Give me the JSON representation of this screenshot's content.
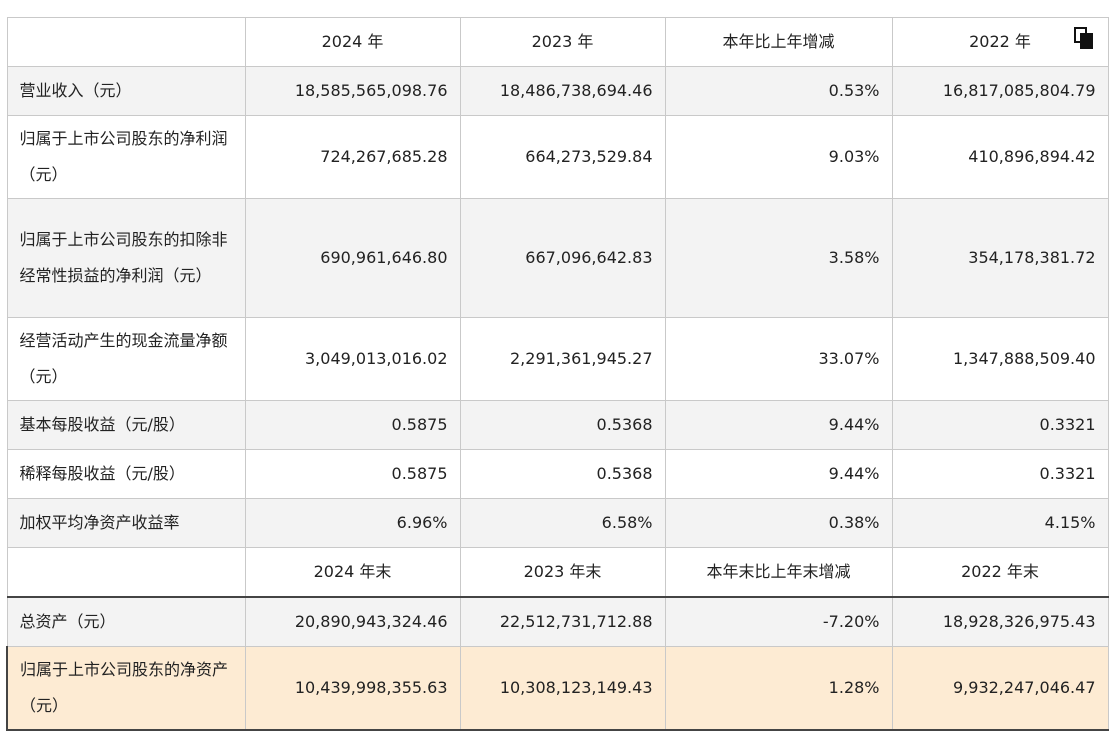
{
  "icons": {
    "copy": "copy-icon"
  },
  "header": [
    "",
    "2024 年",
    "2023 年",
    "本年比上年增减",
    "2022 年"
  ],
  "header2": [
    "",
    "2024 年末",
    "2023 年末",
    "本年末比上年末增减",
    "2022 年末"
  ],
  "rows": [
    {
      "label": "营业收入（元）",
      "v2024": "18,585,565,098.76",
      "v2023": "18,486,738,694.46",
      "change": "0.53%",
      "v2022": "16,817,085,804.79"
    },
    {
      "label": "归属于上市公司股东的净利润（元）",
      "v2024": "724,267,685.28",
      "v2023": "664,273,529.84",
      "change": "9.03%",
      "v2022": "410,896,894.42"
    },
    {
      "label": "归属于上市公司股东的扣除非经常性损益的净利润（元）",
      "v2024": "690,961,646.80",
      "v2023": "667,096,642.83",
      "change": "3.58%",
      "v2022": "354,178,381.72"
    },
    {
      "label": "经营活动产生的现金流量净额（元）",
      "v2024": "3,049,013,016.02",
      "v2023": "2,291,361,945.27",
      "change": "33.07%",
      "v2022": "1,347,888,509.40"
    },
    {
      "label": "基本每股收益（元/股）",
      "v2024": "0.5875",
      "v2023": "0.5368",
      "change": "9.44%",
      "v2022": "0.3321"
    },
    {
      "label": "稀释每股收益（元/股）",
      "v2024": "0.5875",
      "v2023": "0.5368",
      "change": "9.44%",
      "v2022": "0.3321"
    },
    {
      "label": "加权平均净资产收益率",
      "v2024": "6.96%",
      "v2023": "6.58%",
      "change": "0.38%",
      "v2022": "4.15%"
    }
  ],
  "rows2": [
    {
      "label": "总资产（元）",
      "v2024": "20,890,943,324.46",
      "v2023": "22,512,731,712.88",
      "change": "-7.20%",
      "v2022": "18,928,326,975.43"
    },
    {
      "label": "归属于上市公司股东的净资产（元）",
      "v2024": "10,439,998,355.63",
      "v2023": "10,308,123,149.43",
      "change": "1.28%",
      "v2022": "9,932,247,046.47"
    }
  ]
}
